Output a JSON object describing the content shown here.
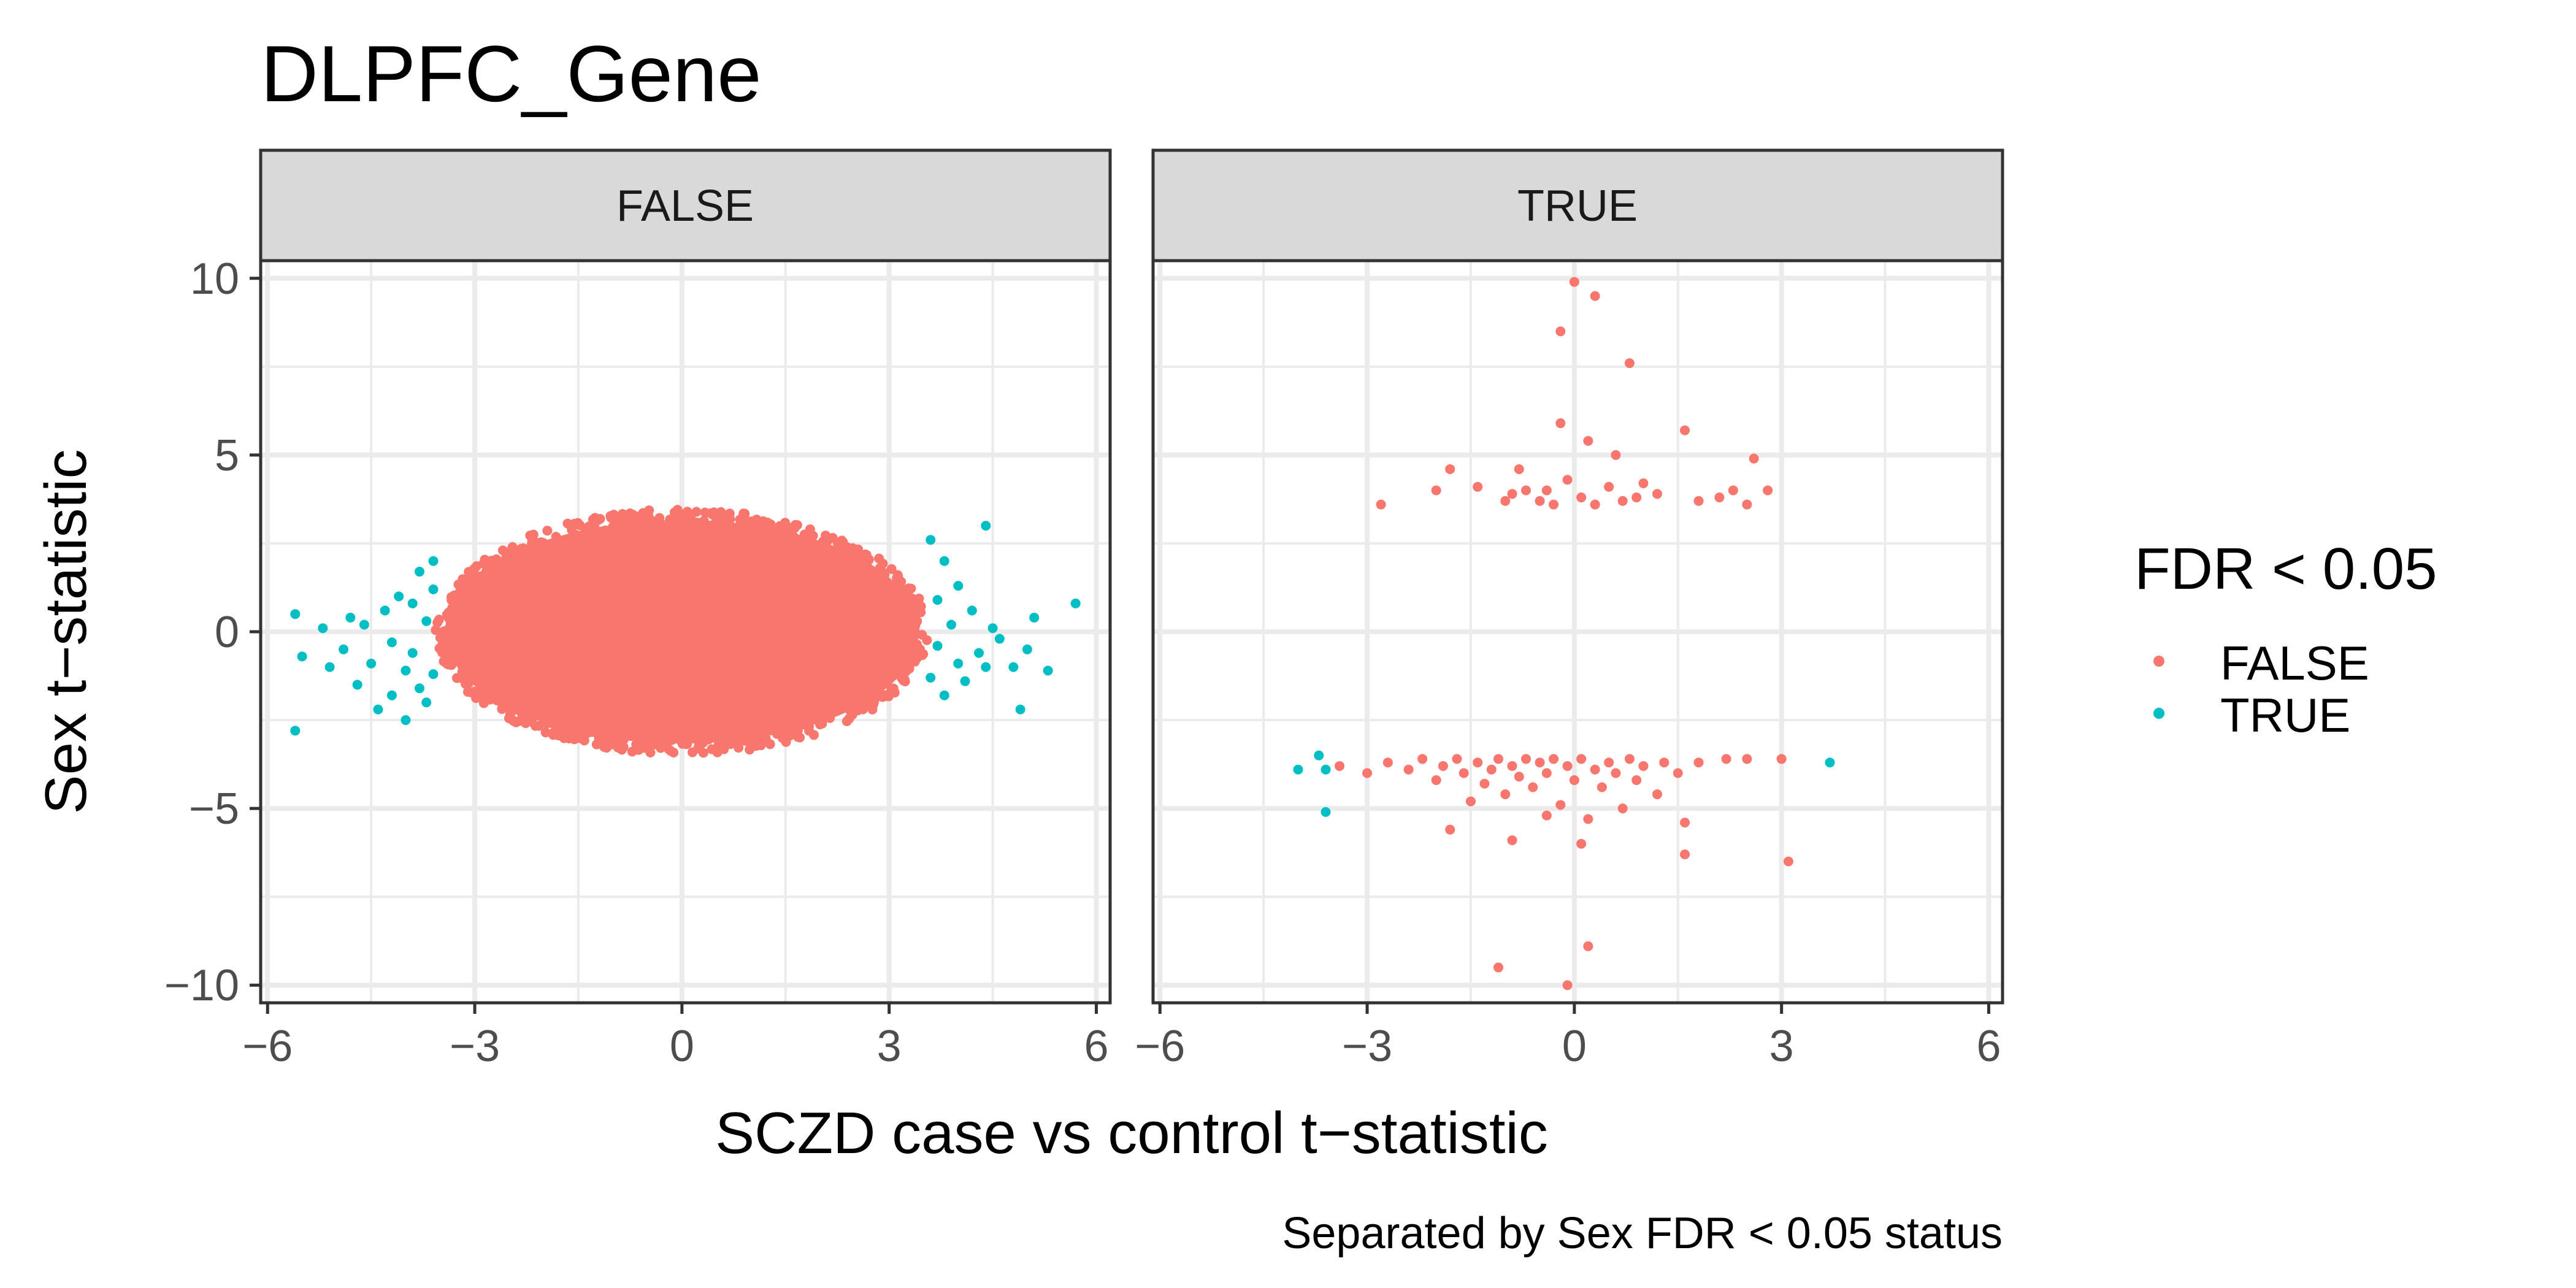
{
  "chart_data": {
    "type": "scatter",
    "title": "DLPFC_Gene",
    "caption": "Separated by Sex FDR < 0.05 status",
    "xlabel": "SCZD case vs control t−statistic",
    "ylabel": "Sex t−statistic",
    "xlim": [
      -6.1,
      6.2
    ],
    "ylim": [
      -10.5,
      10.5
    ],
    "xticks": [
      -6,
      -3,
      0,
      3,
      6
    ],
    "xtick_labels": [
      "−6",
      "−3",
      "0",
      "3",
      "6"
    ],
    "yticks": [
      10,
      5,
      0,
      -5,
      -10
    ],
    "ytick_labels": [
      "10",
      "5",
      "0",
      "−5",
      "−10"
    ],
    "grid": true,
    "legend": {
      "title": "FDR < 0.05",
      "position": "right",
      "entries": [
        {
          "label": "FALSE",
          "color": "#F8766D"
        },
        {
          "label": "TRUE",
          "color": "#00BFC4"
        }
      ]
    },
    "colors": {
      "FALSE": "#F8766D",
      "TRUE": "#00BFC4"
    },
    "panels": [
      {
        "strip": "FALSE",
        "dense_regions": [
          {
            "series": "FALSE",
            "shape": "ellipse",
            "x_range": [
              -3.5,
              3.5
            ],
            "y_range": [
              -3.4,
              3.4
            ],
            "description_value_count": "dense cloud"
          }
        ],
        "points": [
          {
            "x": -5.6,
            "y": 0.5,
            "series": "TRUE"
          },
          {
            "x": -5.5,
            "y": -0.7,
            "series": "TRUE"
          },
          {
            "x": -5.6,
            "y": -2.8,
            "series": "TRUE"
          },
          {
            "x": -5.2,
            "y": 0.1,
            "series": "TRUE"
          },
          {
            "x": -5.1,
            "y": -1.0,
            "series": "TRUE"
          },
          {
            "x": -4.9,
            "y": -0.5,
            "series": "TRUE"
          },
          {
            "x": -4.8,
            "y": 0.4,
            "series": "TRUE"
          },
          {
            "x": -4.7,
            "y": -1.5,
            "series": "TRUE"
          },
          {
            "x": -4.6,
            "y": 0.2,
            "series": "TRUE"
          },
          {
            "x": -4.5,
            "y": -0.9,
            "series": "TRUE"
          },
          {
            "x": -4.4,
            "y": -2.2,
            "series": "TRUE"
          },
          {
            "x": -4.3,
            "y": 0.6,
            "series": "TRUE"
          },
          {
            "x": -4.2,
            "y": -0.3,
            "series": "TRUE"
          },
          {
            "x": -4.2,
            "y": -1.8,
            "series": "TRUE"
          },
          {
            "x": -4.1,
            "y": 1.0,
            "series": "TRUE"
          },
          {
            "x": -4.0,
            "y": -1.1,
            "series": "TRUE"
          },
          {
            "x": -4.0,
            "y": -2.5,
            "series": "TRUE"
          },
          {
            "x": -3.9,
            "y": 0.8,
            "series": "TRUE"
          },
          {
            "x": -3.9,
            "y": -0.6,
            "series": "TRUE"
          },
          {
            "x": -3.8,
            "y": 1.7,
            "series": "TRUE"
          },
          {
            "x": -3.8,
            "y": -1.6,
            "series": "TRUE"
          },
          {
            "x": -3.7,
            "y": 0.3,
            "series": "TRUE"
          },
          {
            "x": -3.7,
            "y": -2.0,
            "series": "TRUE"
          },
          {
            "x": -3.6,
            "y": 1.2,
            "series": "TRUE"
          },
          {
            "x": -3.6,
            "y": -1.2,
            "series": "TRUE"
          },
          {
            "x": -3.6,
            "y": 2.0,
            "series": "TRUE"
          },
          {
            "x": 3.6,
            "y": 2.6,
            "series": "TRUE"
          },
          {
            "x": 3.6,
            "y": -1.3,
            "series": "TRUE"
          },
          {
            "x": 3.7,
            "y": 0.9,
            "series": "TRUE"
          },
          {
            "x": 3.7,
            "y": -0.4,
            "series": "TRUE"
          },
          {
            "x": 3.8,
            "y": 2.0,
            "series": "TRUE"
          },
          {
            "x": 3.8,
            "y": -1.8,
            "series": "TRUE"
          },
          {
            "x": 3.9,
            "y": 0.2,
            "series": "TRUE"
          },
          {
            "x": 4.0,
            "y": 1.3,
            "series": "TRUE"
          },
          {
            "x": 4.0,
            "y": -0.9,
            "series": "TRUE"
          },
          {
            "x": 4.1,
            "y": -1.4,
            "series": "TRUE"
          },
          {
            "x": 4.2,
            "y": 0.6,
            "series": "TRUE"
          },
          {
            "x": 4.3,
            "y": -0.6,
            "series": "TRUE"
          },
          {
            "x": 4.4,
            "y": 3.0,
            "series": "TRUE"
          },
          {
            "x": 4.4,
            "y": -1.0,
            "series": "TRUE"
          },
          {
            "x": 4.5,
            "y": 0.1,
            "series": "TRUE"
          },
          {
            "x": 4.6,
            "y": -0.2,
            "series": "TRUE"
          },
          {
            "x": 4.8,
            "y": -1.0,
            "series": "TRUE"
          },
          {
            "x": 4.9,
            "y": -2.2,
            "series": "TRUE"
          },
          {
            "x": 5.0,
            "y": -0.5,
            "series": "TRUE"
          },
          {
            "x": 5.1,
            "y": 0.4,
            "series": "TRUE"
          },
          {
            "x": 5.3,
            "y": -1.1,
            "series": "TRUE"
          },
          {
            "x": 5.7,
            "y": 0.8,
            "series": "TRUE"
          }
        ]
      },
      {
        "strip": "TRUE",
        "dense_regions": [],
        "points": [
          {
            "x": 0.0,
            "y": 9.9,
            "series": "FALSE"
          },
          {
            "x": 0.3,
            "y": 9.5,
            "series": "FALSE"
          },
          {
            "x": -0.2,
            "y": 8.5,
            "series": "FALSE"
          },
          {
            "x": 0.8,
            "y": 7.6,
            "series": "FALSE"
          },
          {
            "x": -0.2,
            "y": 5.9,
            "series": "FALSE"
          },
          {
            "x": 1.6,
            "y": 5.7,
            "series": "FALSE"
          },
          {
            "x": 0.2,
            "y": 5.4,
            "series": "FALSE"
          },
          {
            "x": 0.6,
            "y": 5.0,
            "series": "FALSE"
          },
          {
            "x": -0.8,
            "y": 4.6,
            "series": "FALSE"
          },
          {
            "x": 2.6,
            "y": 4.9,
            "series": "FALSE"
          },
          {
            "x": -1.8,
            "y": 4.6,
            "series": "FALSE"
          },
          {
            "x": -2.8,
            "y": 3.6,
            "series": "FALSE"
          },
          {
            "x": -2.0,
            "y": 4.0,
            "series": "FALSE"
          },
          {
            "x": -1.4,
            "y": 4.1,
            "series": "FALSE"
          },
          {
            "x": -1.0,
            "y": 3.7,
            "series": "FALSE"
          },
          {
            "x": -0.9,
            "y": 3.9,
            "series": "FALSE"
          },
          {
            "x": -0.7,
            "y": 4.0,
            "series": "FALSE"
          },
          {
            "x": -0.5,
            "y": 3.7,
            "series": "FALSE"
          },
          {
            "x": -0.4,
            "y": 4.0,
            "series": "FALSE"
          },
          {
            "x": -0.3,
            "y": 3.6,
            "series": "FALSE"
          },
          {
            "x": -0.1,
            "y": 4.3,
            "series": "FALSE"
          },
          {
            "x": 0.1,
            "y": 3.8,
            "series": "FALSE"
          },
          {
            "x": 0.3,
            "y": 3.6,
            "series": "FALSE"
          },
          {
            "x": 0.5,
            "y": 4.1,
            "series": "FALSE"
          },
          {
            "x": 0.7,
            "y": 3.7,
            "series": "FALSE"
          },
          {
            "x": 0.9,
            "y": 3.8,
            "series": "FALSE"
          },
          {
            "x": 1.0,
            "y": 4.2,
            "series": "FALSE"
          },
          {
            "x": 1.2,
            "y": 3.9,
            "series": "FALSE"
          },
          {
            "x": 1.8,
            "y": 3.7,
            "series": "FALSE"
          },
          {
            "x": 2.1,
            "y": 3.8,
            "series": "FALSE"
          },
          {
            "x": 2.3,
            "y": 4.0,
            "series": "FALSE"
          },
          {
            "x": 2.5,
            "y": 3.6,
            "series": "FALSE"
          },
          {
            "x": 2.8,
            "y": 4.0,
            "series": "FALSE"
          },
          {
            "x": -3.4,
            "y": -3.8,
            "series": "FALSE"
          },
          {
            "x": -3.0,
            "y": -4.0,
            "series": "FALSE"
          },
          {
            "x": -2.7,
            "y": -3.7,
            "series": "FALSE"
          },
          {
            "x": -2.4,
            "y": -3.9,
            "series": "FALSE"
          },
          {
            "x": -2.2,
            "y": -3.6,
            "series": "FALSE"
          },
          {
            "x": -2.0,
            "y": -4.2,
            "series": "FALSE"
          },
          {
            "x": -1.9,
            "y": -3.8,
            "series": "FALSE"
          },
          {
            "x": -1.7,
            "y": -3.6,
            "series": "FALSE"
          },
          {
            "x": -1.6,
            "y": -4.0,
            "series": "FALSE"
          },
          {
            "x": -1.5,
            "y": -4.8,
            "series": "FALSE"
          },
          {
            "x": -1.4,
            "y": -3.7,
            "series": "FALSE"
          },
          {
            "x": -1.3,
            "y": -4.3,
            "series": "FALSE"
          },
          {
            "x": -1.2,
            "y": -3.9,
            "series": "FALSE"
          },
          {
            "x": -1.1,
            "y": -3.6,
            "series": "FALSE"
          },
          {
            "x": -1.0,
            "y": -4.6,
            "series": "FALSE"
          },
          {
            "x": -0.9,
            "y": -3.8,
            "series": "FALSE"
          },
          {
            "x": -0.8,
            "y": -4.1,
            "series": "FALSE"
          },
          {
            "x": -0.7,
            "y": -3.6,
            "series": "FALSE"
          },
          {
            "x": -0.6,
            "y": -4.4,
            "series": "FALSE"
          },
          {
            "x": -0.5,
            "y": -3.7,
            "series": "FALSE"
          },
          {
            "x": -0.4,
            "y": -4.0,
            "series": "FALSE"
          },
          {
            "x": -0.3,
            "y": -3.6,
            "series": "FALSE"
          },
          {
            "x": -0.2,
            "y": -4.9,
            "series": "FALSE"
          },
          {
            "x": -0.1,
            "y": -3.8,
            "series": "FALSE"
          },
          {
            "x": 0.0,
            "y": -4.2,
            "series": "FALSE"
          },
          {
            "x": 0.1,
            "y": -3.6,
            "series": "FALSE"
          },
          {
            "x": 0.2,
            "y": -5.3,
            "series": "FALSE"
          },
          {
            "x": 0.3,
            "y": -3.9,
            "series": "FALSE"
          },
          {
            "x": 0.4,
            "y": -4.4,
            "series": "FALSE"
          },
          {
            "x": 0.5,
            "y": -3.7,
            "series": "FALSE"
          },
          {
            "x": 0.6,
            "y": -4.0,
            "series": "FALSE"
          },
          {
            "x": 0.7,
            "y": -5.0,
            "series": "FALSE"
          },
          {
            "x": 0.8,
            "y": -3.6,
            "series": "FALSE"
          },
          {
            "x": 0.9,
            "y": -4.2,
            "series": "FALSE"
          },
          {
            "x": 1.0,
            "y": -3.8,
            "series": "FALSE"
          },
          {
            "x": 1.2,
            "y": -4.6,
            "series": "FALSE"
          },
          {
            "x": 1.3,
            "y": -3.7,
            "series": "FALSE"
          },
          {
            "x": 1.5,
            "y": -4.0,
            "series": "FALSE"
          },
          {
            "x": 1.6,
            "y": -5.4,
            "series": "FALSE"
          },
          {
            "x": 1.6,
            "y": -6.3,
            "series": "FALSE"
          },
          {
            "x": 1.8,
            "y": -3.7,
            "series": "FALSE"
          },
          {
            "x": 2.2,
            "y": -3.6,
            "series": "FALSE"
          },
          {
            "x": 2.5,
            "y": -3.6,
            "series": "FALSE"
          },
          {
            "x": 3.0,
            "y": -3.6,
            "series": "FALSE"
          },
          {
            "x": 3.1,
            "y": -6.5,
            "series": "FALSE"
          },
          {
            "x": -1.8,
            "y": -5.6,
            "series": "FALSE"
          },
          {
            "x": -0.9,
            "y": -5.9,
            "series": "FALSE"
          },
          {
            "x": -0.4,
            "y": -5.2,
            "series": "FALSE"
          },
          {
            "x": 0.1,
            "y": -6.0,
            "series": "FALSE"
          },
          {
            "x": -1.1,
            "y": -9.5,
            "series": "FALSE"
          },
          {
            "x": 0.2,
            "y": -8.9,
            "series": "FALSE"
          },
          {
            "x": -0.1,
            "y": -10.0,
            "series": "FALSE"
          },
          {
            "x": -4.0,
            "y": -3.9,
            "series": "TRUE"
          },
          {
            "x": -3.7,
            "y": -3.5,
            "series": "TRUE"
          },
          {
            "x": -3.6,
            "y": -3.9,
            "series": "TRUE"
          },
          {
            "x": -3.6,
            "y": -5.1,
            "series": "TRUE"
          },
          {
            "x": 3.7,
            "y": -3.7,
            "series": "TRUE"
          }
        ]
      }
    ]
  }
}
